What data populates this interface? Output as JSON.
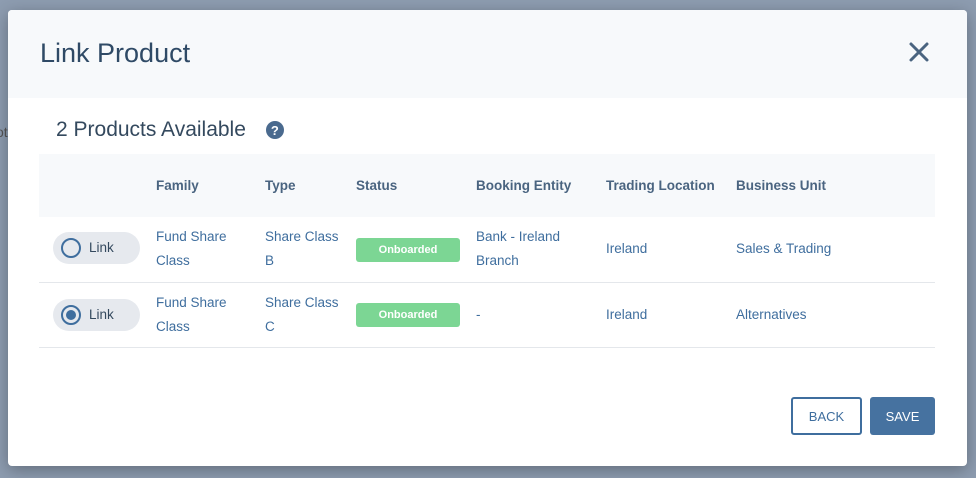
{
  "background_text": "ot",
  "modal": {
    "title": "Link Product",
    "subtitle": "2 Products Available",
    "help_icon": "question-circle-icon",
    "close_icon": "close-icon"
  },
  "table": {
    "headers": [
      "",
      "Family",
      "Type",
      "Status",
      "Booking Entity",
      "Trading Location",
      "Business Unit"
    ],
    "rows": [
      {
        "link_label": "Link",
        "selected": false,
        "family": "Fund Share Class",
        "type": "Share Class B",
        "status": "Onboarded",
        "booking_entity": "Bank - Ireland Branch",
        "trading_location": "Ireland",
        "business_unit": "Sales & Trading"
      },
      {
        "link_label": "Link",
        "selected": true,
        "family": "Fund Share Class",
        "type": "Share Class C",
        "status": "Onboarded",
        "booking_entity": "-",
        "trading_location": "Ireland",
        "business_unit": "Alternatives"
      }
    ]
  },
  "buttons": {
    "back": "BACK",
    "save": "SAVE"
  },
  "colors": {
    "primary": "#4672a0",
    "status_onboarded": "#7cd694"
  }
}
